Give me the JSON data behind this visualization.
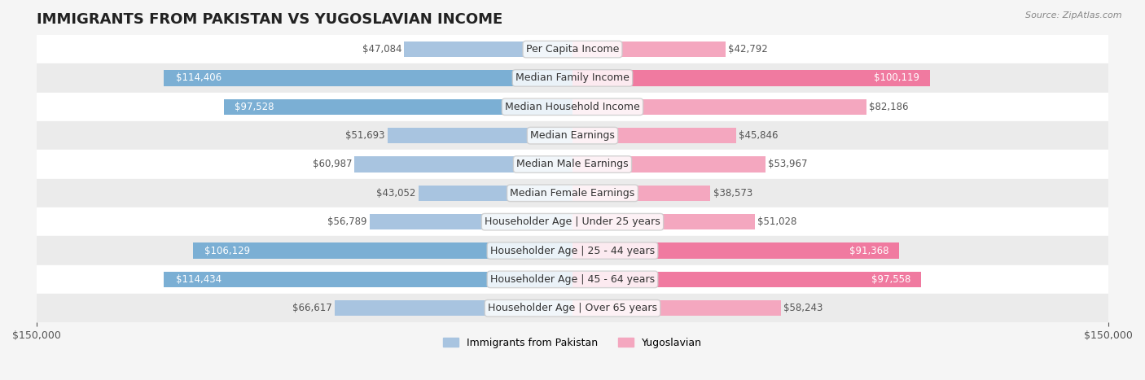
{
  "title": "IMMIGRANTS FROM PAKISTAN VS YUGOSLAVIAN INCOME",
  "source": "Source: ZipAtlas.com",
  "categories": [
    "Per Capita Income",
    "Median Family Income",
    "Median Household Income",
    "Median Earnings",
    "Median Male Earnings",
    "Median Female Earnings",
    "Householder Age | Under 25 years",
    "Householder Age | 25 - 44 years",
    "Householder Age | 45 - 64 years",
    "Householder Age | Over 65 years"
  ],
  "pakistan_values": [
    47084,
    114406,
    97528,
    51693,
    60987,
    43052,
    56789,
    106129,
    114434,
    66617
  ],
  "yugoslavian_values": [
    42792,
    100119,
    82186,
    45846,
    53967,
    38573,
    51028,
    91368,
    97558,
    58243
  ],
  "pakistan_color_light": "#a8c4e0",
  "pakistan_color_dark": "#7bafd4",
  "yugoslavian_color_light": "#f4a7bf",
  "yugoslavian_color_dark": "#f07aa0",
  "bar_height": 0.55,
  "xlim": 150000,
  "bg_color": "#f5f5f5",
  "row_colors": [
    "#ffffff",
    "#f0f0f0"
  ],
  "label_fontsize": 9,
  "value_fontsize": 8.5,
  "title_fontsize": 13,
  "legend_pakistan_label": "Immigrants from Pakistan",
  "legend_yugoslavian_label": "Yugoslavian",
  "pakistan_highlight": [
    1,
    2,
    7,
    8
  ],
  "yugoslavian_highlight": [
    1,
    7,
    8
  ]
}
